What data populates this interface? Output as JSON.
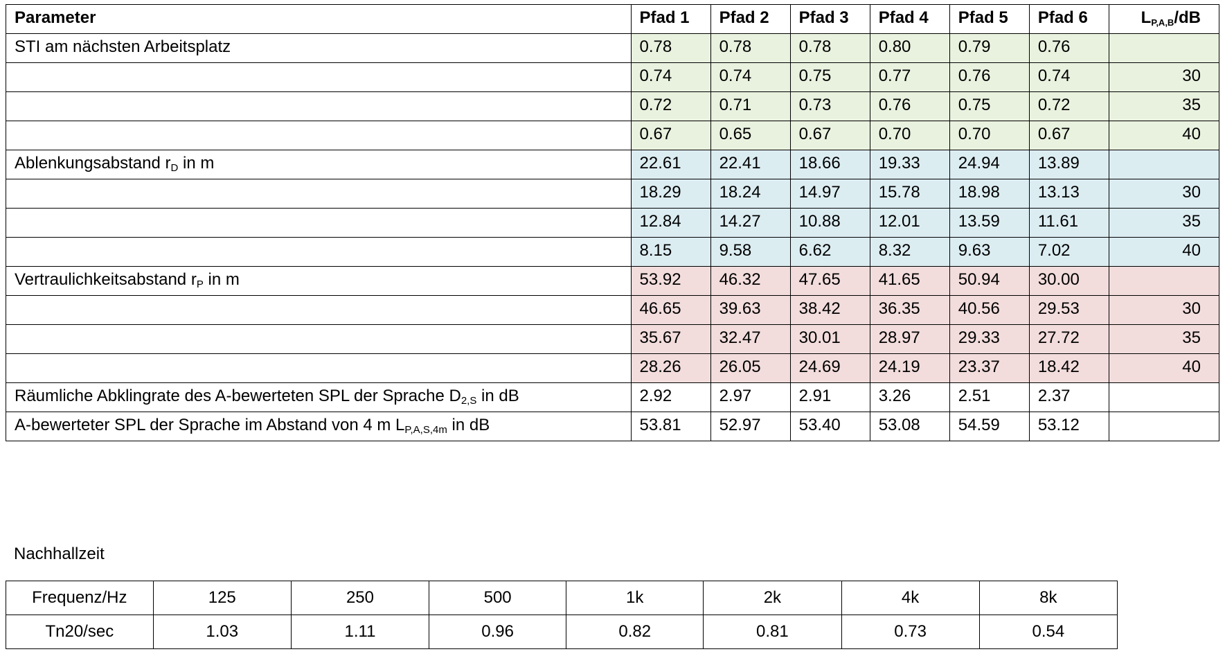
{
  "main_table": {
    "headers": {
      "parameter": "Parameter",
      "paths": [
        "Pfad 1",
        "Pfad 2",
        "Pfad 3",
        "Pfad 4",
        "Pfad 5",
        "Pfad 6"
      ],
      "lp_main": "L",
      "lp_sub": "P,A,B",
      "lp_unit": "/dB"
    },
    "sti": {
      "label": "STI am nächsten Arbeitsplatz",
      "rows": [
        {
          "values": [
            "0.78",
            "0.78",
            "0.78",
            "0.80",
            "0.79",
            "0.76"
          ],
          "lp": ""
        },
        {
          "values": [
            "0.74",
            "0.74",
            "0.75",
            "0.77",
            "0.76",
            "0.74"
          ],
          "lp": "30"
        },
        {
          "values": [
            "0.72",
            "0.71",
            "0.73",
            "0.76",
            "0.75",
            "0.72"
          ],
          "lp": "35"
        },
        {
          "values": [
            "0.67",
            "0.65",
            "0.67",
            "0.70",
            "0.70",
            "0.67"
          ],
          "lp": "40"
        }
      ]
    },
    "rd": {
      "label_main": "Ablenkungsabstand r",
      "label_sub": "D",
      "label_tail": " in m",
      "rows": [
        {
          "values": [
            "22.61",
            "22.41",
            "18.66",
            "19.33",
            "24.94",
            "13.89"
          ],
          "lp": ""
        },
        {
          "values": [
            "18.29",
            "18.24",
            "14.97",
            "15.78",
            "18.98",
            "13.13"
          ],
          "lp": "30"
        },
        {
          "values": [
            "12.84",
            "14.27",
            "10.88",
            "12.01",
            "13.59",
            "11.61"
          ],
          "lp": "35"
        },
        {
          "values": [
            "8.15",
            "9.58",
            "6.62",
            "8.32",
            "9.63",
            "7.02"
          ],
          "lp": "40"
        }
      ]
    },
    "rp": {
      "label_main": "Vertraulichkeitsabstand r",
      "label_sub": "P",
      "label_tail": " in m",
      "rows": [
        {
          "values": [
            "53.92",
            "46.32",
            "47.65",
            "41.65",
            "50.94",
            "30.00"
          ],
          "lp": ""
        },
        {
          "values": [
            "46.65",
            "39.63",
            "38.42",
            "36.35",
            "40.56",
            "29.53"
          ],
          "lp": "30"
        },
        {
          "values": [
            "35.67",
            "32.47",
            "30.01",
            "28.97",
            "29.33",
            "27.72"
          ],
          "lp": "35"
        },
        {
          "values": [
            "28.26",
            "26.05",
            "24.69",
            "24.19",
            "23.37",
            "18.42"
          ],
          "lp": "40"
        }
      ]
    },
    "d2s": {
      "label_main": "Räumliche Abklingrate des A-bewerteten SPL der Sprache D",
      "label_sub": "2,S",
      "label_tail": " in dB",
      "values": [
        "2.92",
        "2.97",
        "2.91",
        "3.26",
        "2.51",
        "2.37"
      ]
    },
    "lpas": {
      "label_main": "A-bewerteter SPL der Sprache im Abstand von 4 m  L",
      "label_sub": "P,A,S,4m",
      "label_tail": " in dB",
      "values": [
        "53.81",
        "52.97",
        "53.40",
        "53.08",
        "54.59",
        "53.12"
      ]
    },
    "colors": {
      "sti": "#e9f2df",
      "rd": "#dcedf2",
      "rp": "#f2dcdc"
    }
  },
  "reverb": {
    "title": "Nachhallzeit",
    "freq_label": "Frequenz/Hz",
    "freqs": [
      "125",
      "250",
      "500",
      "1k",
      "2k",
      "4k",
      "8k"
    ],
    "t_label": "Tn20/sec",
    "times": [
      "1.03",
      "1.11",
      "0.96",
      "0.82",
      "0.81",
      "0.73",
      "0.54"
    ]
  }
}
